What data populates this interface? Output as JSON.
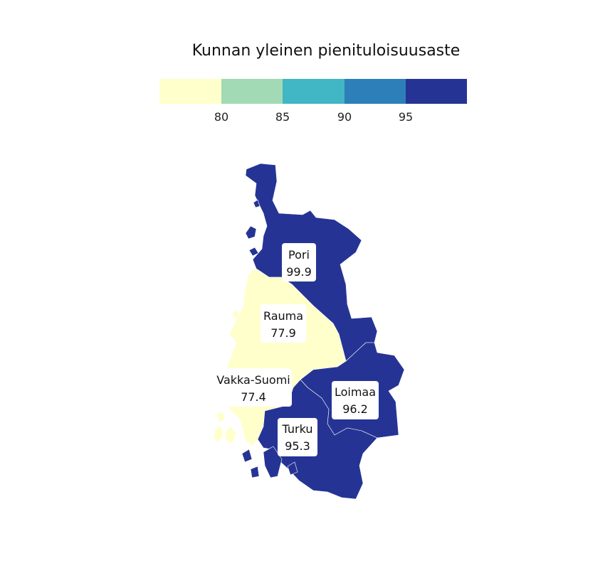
{
  "title": "Kunnan yleinen pienituloisuusaste",
  "legend": {
    "colors": [
      "#ffffcc",
      "#a1dab4",
      "#41b6c4",
      "#2c7fb8",
      "#253494"
    ],
    "ticks": [
      "80",
      "85",
      "90",
      "95"
    ]
  },
  "regions": [
    {
      "name": "Pori",
      "value": "99.9",
      "color": "#253494"
    },
    {
      "name": "Rauma",
      "value": "77.9",
      "color": "#ffffcc"
    },
    {
      "name": "Vakka-Suomi",
      "value": "77.4",
      "color": "#ffffcc"
    },
    {
      "name": "Loimaa",
      "value": "96.2",
      "color": "#253494"
    },
    {
      "name": "Turku",
      "value": "95.3",
      "color": "#253494"
    }
  ]
}
